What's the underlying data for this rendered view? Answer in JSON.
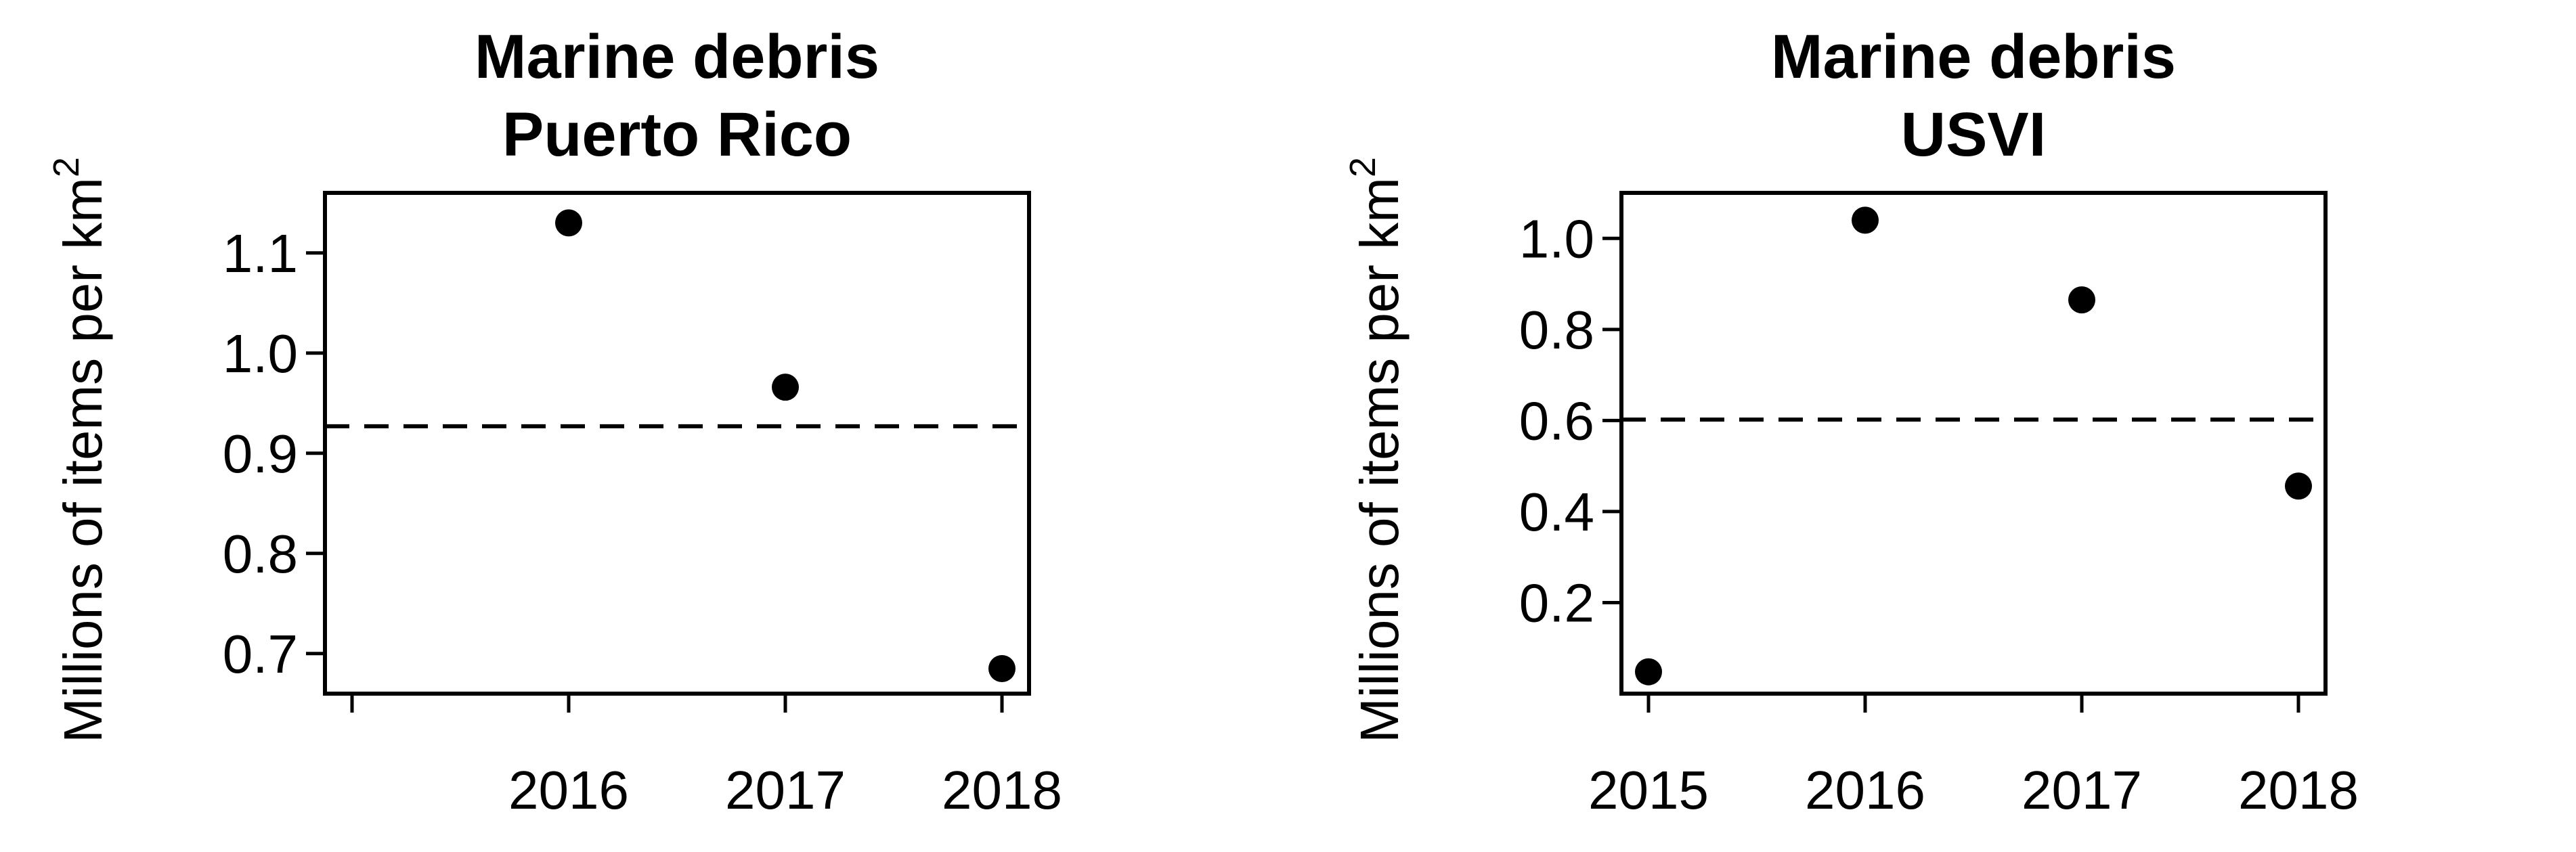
{
  "chart_data": [
    {
      "type": "scatter",
      "title_lines": [
        "Marine debris",
        "Puerto Rico"
      ],
      "ylabel": "Millions of items per km",
      "ylabel_superscript": "2",
      "xlim": [
        2015,
        2018
      ],
      "ylim": [
        0.66,
        1.16
      ],
      "x_ticks": [
        2015,
        2016,
        2017,
        2018
      ],
      "x_tick_labels": [
        "",
        "2016",
        "2017",
        "2018"
      ],
      "y_ticks": [
        0.7,
        0.8,
        0.9,
        1.0,
        1.1
      ],
      "y_tick_labels": [
        "0.7",
        "0.8",
        "0.9",
        "1.0",
        "1.1"
      ],
      "x": [
        2016,
        2017,
        2018
      ],
      "y": [
        1.13,
        0.966,
        0.685
      ],
      "mean_line": 0.927,
      "marker_color": "#000000"
    },
    {
      "type": "scatter",
      "title_lines": [
        "Marine debris",
        "USVI"
      ],
      "ylabel": "Millions of items per km",
      "ylabel_superscript": "2",
      "xlim": [
        2015,
        2018
      ],
      "ylim": [
        0.0,
        1.1
      ],
      "x_ticks": [
        2015,
        2016,
        2017,
        2018
      ],
      "x_tick_labels": [
        "2015",
        "2016",
        "2017",
        "2018"
      ],
      "y_ticks": [
        0.2,
        0.4,
        0.6,
        0.8,
        1.0
      ],
      "y_tick_labels": [
        "0.2",
        "0.4",
        "0.6",
        "0.8",
        "1.0"
      ],
      "x": [
        2015,
        2016,
        2017,
        2018
      ],
      "y": [
        0.048,
        1.04,
        0.865,
        0.456
      ],
      "mean_line": 0.602,
      "marker_color": "#000000"
    }
  ]
}
